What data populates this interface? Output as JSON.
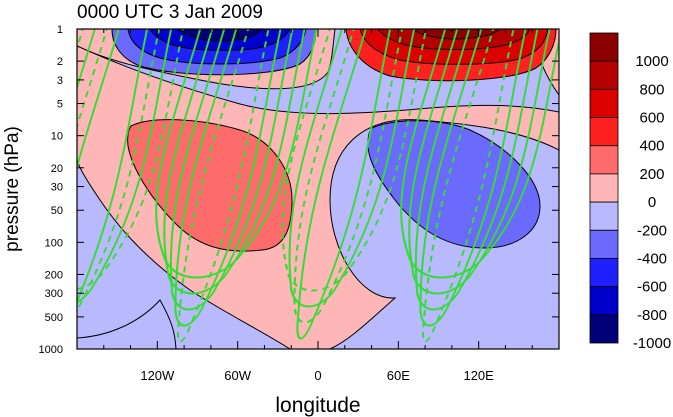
{
  "chart_data": {
    "type": "heatmap",
    "title": "0000 UTC 3 Jan 2009",
    "xlabel": "longitude",
    "ylabel": "pressure (hPa)",
    "x_ticks": [
      {
        "value": -120,
        "label": "120W"
      },
      {
        "value": -60,
        "label": "60W"
      },
      {
        "value": 0,
        "label": "0"
      },
      {
        "value": 60,
        "label": "60E"
      },
      {
        "value": 120,
        "label": "120E"
      }
    ],
    "xlim": [
      -180,
      180
    ],
    "y_scale": "log",
    "ylim": [
      1000,
      1
    ],
    "y_ticks": [
      1,
      2,
      3,
      5,
      10,
      20,
      30,
      50,
      100,
      200,
      300,
      500,
      1000
    ],
    "colorbar": {
      "labels": [
        "1000",
        "800",
        "600",
        "400",
        "200",
        "0",
        "-200",
        "-400",
        "-600",
        "-800",
        "-1000"
      ],
      "colors": [
        "#8b0000",
        "#b40000",
        "#dd0000",
        "#ff2020",
        "#ff6a6a",
        "#ffb6b6",
        "#b9b9ff",
        "#6a6aff",
        "#2020ff",
        "#0000cc",
        "#00007a"
      ]
    },
    "filled_regions": [
      {
        "sign": "positive",
        "level": 400,
        "lon": [
          -140,
          -40
        ],
        "pressure": [
          100,
          10
        ],
        "color": "#ff6a6a"
      },
      {
        "sign": "negative",
        "level": -400,
        "lon": [
          40,
          150
        ],
        "pressure": [
          100,
          10
        ],
        "color": "#6a6aff"
      },
      {
        "sign": "negative",
        "level": -1000,
        "lon": [
          -150,
          -30
        ],
        "pressure": [
          5,
          1
        ],
        "color": "#0000cc"
      },
      {
        "sign": "positive",
        "level": 1000,
        "lon": [
          40,
          170
        ],
        "pressure": [
          5,
          1
        ],
        "color": "#b40000"
      }
    ],
    "overlay_contours": {
      "color": "#33dd33",
      "styles": [
        "solid",
        "dashed"
      ]
    },
    "grid": false
  }
}
